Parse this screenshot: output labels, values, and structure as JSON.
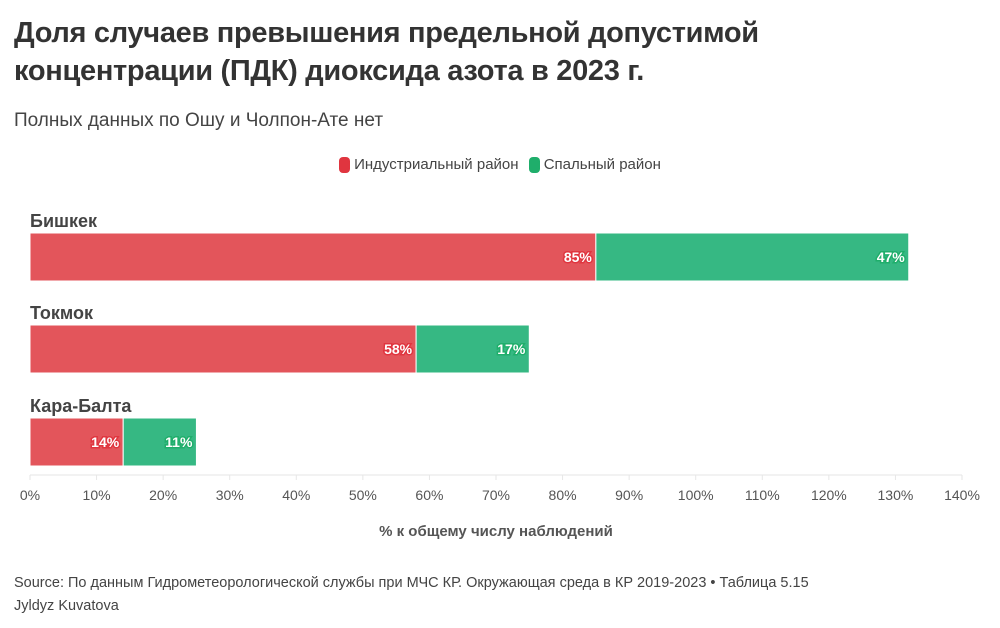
{
  "title_line1": "Доля случаев превышения предельной допустимой",
  "title_line2": "концентрации (ПДК) диоксида азота в 2023 г.",
  "subtitle": "Полных данных по Ошу и Чолпон-Ате нет",
  "source": "Source: По данным Гидрометеорологической службы при МЧС КР. Окружающая среда в КР 2019-2023 • Таблица 5.15",
  "author": "Jyldyz Kuvatova",
  "chart_data": {
    "type": "bar",
    "orientation": "horizontal",
    "stacked": true,
    "categories": [
      "Бишкек",
      "Токмок",
      "Кара-Балта"
    ],
    "series": [
      {
        "name": "Индустриальный район",
        "color": "#e3555b",
        "values": [
          85,
          58,
          14
        ],
        "labels": [
          "85%",
          "58%",
          "14%"
        ]
      },
      {
        "name": "Спальный район",
        "color": "#36b883",
        "values": [
          47,
          17,
          11
        ],
        "labels": [
          "47%",
          "17%",
          "11%"
        ]
      }
    ],
    "legend_colors": [
      "#e0353f",
      "#1fae6b"
    ],
    "xlabel": "% к общему числу наблюдений",
    "xlim": [
      0,
      140
    ],
    "xticks": [
      "0%",
      "10%",
      "20%",
      "30%",
      "40%",
      "50%",
      "60%",
      "70%",
      "80%",
      "90%",
      "100%",
      "110%",
      "120%",
      "130%",
      "140%"
    ],
    "legend_position": "top-center",
    "grid": false
  }
}
